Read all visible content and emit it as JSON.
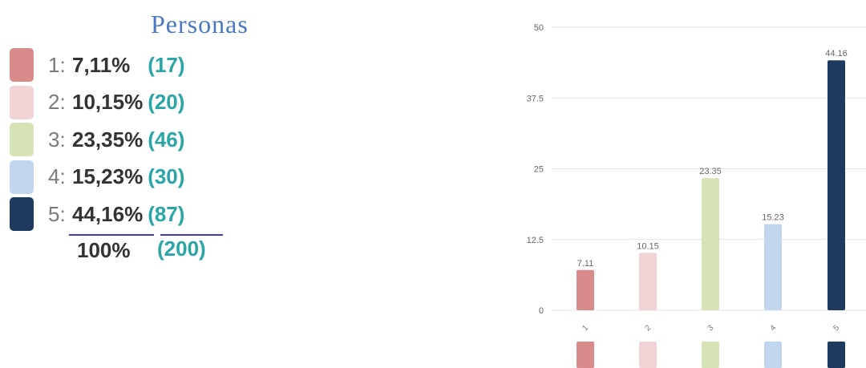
{
  "legend": {
    "title": "Personas",
    "items": [
      {
        "index": "1:",
        "percent": "7,11%",
        "count": "(17)",
        "color": "#d98a8a"
      },
      {
        "index": "2:",
        "percent": "10,15%",
        "count": "(20)",
        "color": "#f2d4d7"
      },
      {
        "index": "3:",
        "percent": "23,35%",
        "count": "(46)",
        "color": "#d5e3b5"
      },
      {
        "index": "4:",
        "percent": "15,23%",
        "count": "(30)",
        "color": "#c3d6ef"
      },
      {
        "index": "5:",
        "percent": "44,16%",
        "count": "(87)",
        "color": "#1e3a5f"
      }
    ],
    "total_percent": "100%",
    "total_count": "(200)"
  },
  "chart_data": {
    "type": "bar",
    "categories": [
      "1",
      "2",
      "3",
      "4",
      "5"
    ],
    "values": [
      7.11,
      10.15,
      23.35,
      15.23,
      44.16
    ],
    "value_labels": [
      "7.11",
      "10.15",
      "23.35",
      "15.23",
      "44.16"
    ],
    "colors": [
      "#d98a8a",
      "#f2d4d7",
      "#d5e3b5",
      "#c3d6ef",
      "#1e3a5f"
    ],
    "yticks": [
      "0",
      "12.5",
      "25",
      "37.5",
      "50"
    ],
    "ylim": [
      0,
      50
    ],
    "grid": true,
    "title": "",
    "xlabel": "",
    "ylabel": ""
  }
}
